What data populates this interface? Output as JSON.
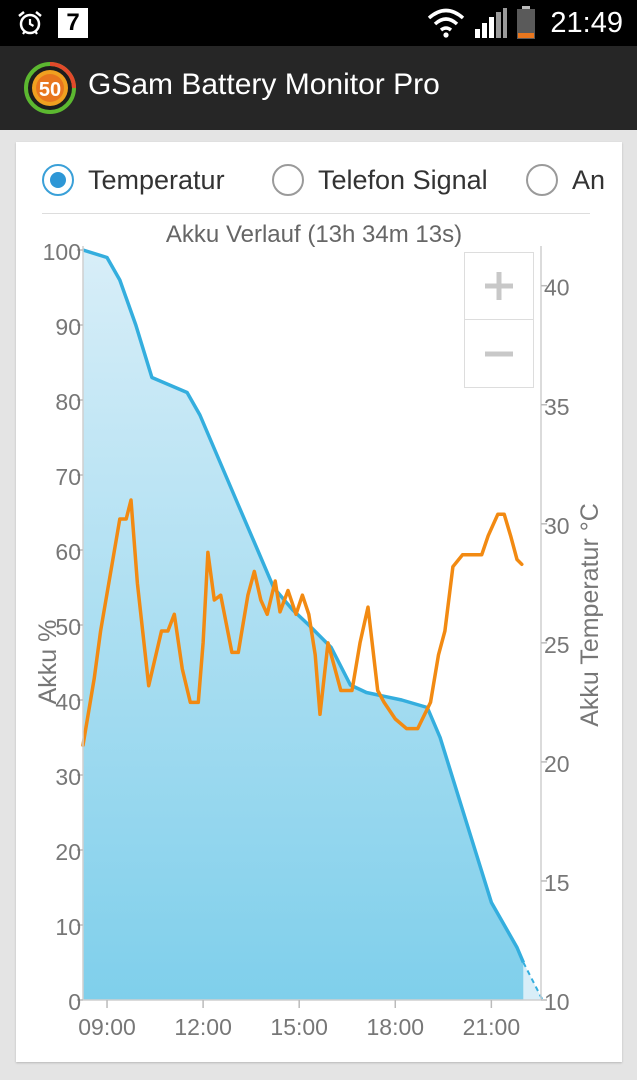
{
  "status_bar": {
    "icons": [
      "alarm-icon",
      "calendar-icon",
      "wifi-icon",
      "signal-icon",
      "battery-icon"
    ],
    "calendar_day": "7",
    "time": "21:49"
  },
  "app_bar": {
    "logo_text": "50",
    "title": "GSam Battery Monitor Pro"
  },
  "options": {
    "items": [
      {
        "label": "Temperatur",
        "checked": true
      },
      {
        "label": "Telefon Signal",
        "checked": false
      },
      {
        "label": "An",
        "checked": false
      }
    ]
  },
  "zoom": {
    "in_label": "+",
    "out_label": "−"
  },
  "colors": {
    "battery_line": "#34aede",
    "battery_fill_top": "#d8eef8",
    "battery_fill_bottom": "#7fcfeb",
    "temperature_line": "#f28a12",
    "axis_text": "#777777",
    "radio_accent": "#2e97d6"
  },
  "chart_data": {
    "type": "line",
    "title": "Akku Verlauf (13h 34m 13s)",
    "x_tick_labels": [
      "09:00",
      "12:00",
      "15:00",
      "18:00",
      "21:00"
    ],
    "x_ticks_hours": [
      9,
      12,
      15,
      18,
      21
    ],
    "xlim_hours": [
      8.25,
      22.55
    ],
    "y_left_label": "Akku %",
    "y_left_lim": [
      0,
      100
    ],
    "y_left_ticks": [
      "0",
      "10",
      "20",
      "30",
      "40",
      "50",
      "60",
      "70",
      "80",
      "90",
      "100"
    ],
    "y_right_label": "Akku Temperatur °C",
    "y_right_lim": [
      10,
      41.5
    ],
    "y_right_ticks": [
      "10",
      "15",
      "20",
      "25",
      "30",
      "35",
      "40"
    ],
    "series": [
      {
        "axis": "left",
        "x": [
          8.25,
          9.0,
          9.4,
          9.9,
          10.4,
          11.5,
          11.9,
          12.5,
          13.1,
          13.7,
          14.2,
          14.8,
          15.3,
          16.0,
          16.6,
          17.1,
          18.2,
          19.0,
          19.4,
          20.2,
          21.0,
          21.8,
          22.0
        ],
        "values": [
          100,
          99,
          96,
          90,
          83,
          81,
          78,
          72,
          66,
          60,
          55,
          52,
          50,
          47,
          42,
          41,
          40,
          39,
          35,
          24,
          13,
          7,
          5
        ]
      },
      {
        "axis": "left",
        "projected": true,
        "x": [
          22.0,
          22.6
        ],
        "values": [
          5,
          0
        ]
      },
      {
        "axis": "right",
        "x": [
          8.25,
          8.6,
          8.8,
          9.4,
          9.6,
          9.75,
          9.95,
          10.3,
          10.7,
          10.9,
          11.1,
          11.35,
          11.6,
          11.85,
          12.0,
          12.15,
          12.35,
          12.55,
          12.9,
          13.1,
          13.4,
          13.6,
          13.8,
          14.0,
          14.25,
          14.4,
          14.65,
          14.9,
          15.1,
          15.3,
          15.5,
          15.65,
          15.9,
          16.3,
          16.65,
          16.9,
          17.15,
          17.45,
          17.65,
          18.0,
          18.35,
          18.7,
          19.1,
          19.35,
          19.55,
          19.8,
          20.1,
          20.5,
          20.7,
          20.9,
          21.2,
          21.4,
          21.6,
          21.7,
          21.8,
          21.95
        ],
        "values": [
          20.7,
          23.5,
          25.5,
          30.2,
          30.2,
          31.0,
          27.5,
          23.2,
          25.5,
          25.5,
          26.2,
          23.9,
          22.5,
          22.5,
          25.0,
          28.8,
          26.8,
          27.0,
          24.6,
          24.6,
          27.0,
          28.0,
          26.8,
          26.2,
          27.6,
          26.3,
          27.2,
          26.2,
          27.0,
          26.2,
          24.5,
          22.0,
          25.0,
          23.0,
          23.0,
          25.0,
          26.5,
          23.0,
          22.5,
          21.8,
          21.4,
          21.4,
          22.5,
          24.5,
          25.5,
          28.2,
          28.7,
          28.7,
          28.7,
          29.5,
          30.4,
          30.4,
          29.5,
          29.0,
          28.5,
          28.3
        ]
      }
    ]
  }
}
